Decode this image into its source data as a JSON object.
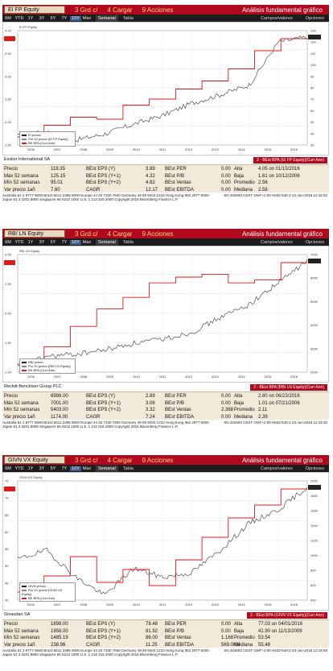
{
  "toolbar_labels": {
    "grd": "3 Grd c/",
    "cargar": "4 Cargar",
    "acciones": "9 Acciones",
    "title": "Análisis fundamental gráfico",
    "ranges": [
      "6M",
      "YTD",
      "1Y",
      "3Y",
      "5Y",
      "7Y",
      "10Y",
      "Max"
    ],
    "active_range": "10Y",
    "semanal": "Semanal",
    "tabla": "Tabla",
    "campos": "Campos/valores",
    "opciones": "Opciones"
  },
  "panels": [
    {
      "ticker": "EI FP Equity",
      "company": "Essilor International SA",
      "be_box": "2 - BEst BPA (EI FP Equity)(Curr Ann)",
      "stats": {
        "precio": {
          "label": "Precio",
          "value": "119.35"
        },
        "max52": {
          "label": "Máx 52 semana",
          "value": "125.15"
        },
        "min52": {
          "label": "Mín 52 semanas",
          "value": "95.01"
        },
        "var": {
          "label": "Var precio 1añ",
          "value": "7.60"
        },
        "eps_y": {
          "label": "BEst EPS (Y)",
          "value": "3.89"
        },
        "eps_y1": {
          "label": "BEst EPS (Y+1)",
          "value": "4.32"
        },
        "eps_y2": {
          "label": "BEst EPS (Y+2)",
          "value": "4.82"
        },
        "cagr": {
          "label": "CAGR",
          "value": "12.17"
        },
        "per": {
          "label": "BEst PER",
          "value": "0.00"
        },
        "pb": {
          "label": "BEst P/B",
          "value": "0.00"
        },
        "ventas": {
          "label": "BEst Ventas",
          "value": "0.00"
        },
        "ebitda": {
          "label": "BEst EBITDA",
          "value": "0.00"
        },
        "alta": {
          "label": "Alta",
          "value": "4.05 on 01/15/2016"
        },
        "baja": {
          "label": "Baja",
          "value": "1.61 on 10/12/2006"
        },
        "promedio": {
          "label": "Promedio",
          "value": "2.56"
        },
        "mediana": {
          "label": "Mediana",
          "value": "2.58"
        }
      },
      "footer_left": [
        "Australia 61 2 9777 8600  Brazil 5511 2395 9000  Europe 44 20 7330 7500  Germany 49 69 9204 1210  Hong Kong 852 2977 6000",
        "Japan 81 3 3201 8900          Singapore 65 6212 1000          U.S. 1 212 318 2000          Copyright 2016 Bloomberg Finance L.P."
      ],
      "footer_right": "SN 263693 CEST  GMT+2:00 H632-540-2  23-Jun-2016 12:15:52",
      "legend": [
        "EI precio",
        "Por 10 precio (EI FP Equity)",
        "BE BPA (Curr Ann)"
      ],
      "right_axis": [
        "130",
        "120",
        "110",
        "100",
        "90",
        "80",
        "70",
        "60",
        "50",
        "40",
        "30"
      ],
      "left_axis": [
        "4.00",
        "3.50",
        "3.00",
        "2.50",
        "2.00",
        "1.50"
      ],
      "chart_data": {
        "type": "line",
        "x": [
          "2006",
          "2007",
          "2008",
          "2009",
          "2010",
          "2011",
          "2012",
          "2013",
          "2014",
          "2015",
          "2016"
        ],
        "series": [
          {
            "name": "EI precio",
            "values": [
              38,
              42,
              35,
              40,
              48,
              55,
              65,
              72,
              80,
              115,
              119
            ]
          },
          {
            "name": "BE BPA (Curr Ann)",
            "values": [
              1.61,
              1.9,
              2.1,
              2.05,
              2.4,
              2.55,
              2.8,
              3.0,
              3.3,
              3.75,
              4.05
            ]
          }
        ]
      }
    },
    {
      "ticker": "RB/ LN Equity",
      "company": "Reckitt Benckiser Group PLC",
      "be_box": "2 - BEst BPA (RB/ LN Equity)(Curr Ann)",
      "stats": {
        "precio": {
          "label": "Precio",
          "value": "6998.00"
        },
        "max52": {
          "label": "Máx 52 semana",
          "value": "7001.00"
        },
        "min52": {
          "label": "Mín 52 semanas",
          "value": "5403.00"
        },
        "var": {
          "label": "Var precio 1añ",
          "value": "1174.00"
        },
        "eps_y": {
          "label": "BEst EPS (Y)",
          "value": "2.89"
        },
        "eps_y1": {
          "label": "BEst EPS (Y+1)",
          "value": "3.06"
        },
        "eps_y2": {
          "label": "BEst EPS (Y+2)",
          "value": "3.32"
        },
        "cagr": {
          "label": "CAGR",
          "value": "7.24"
        },
        "per": {
          "label": "BEst PER",
          "value": "0.00"
        },
        "pb": {
          "label": "BEst P/B",
          "value": "0.00"
        },
        "ventas": {
          "label": "BEst Ventas",
          "value": "2.368"
        },
        "ebitda": {
          "label": "BEst EBITDA",
          "value": "0.00"
        },
        "alta": {
          "label": "Alta",
          "value": "2.80 on 06/23/2016"
        },
        "baja": {
          "label": "Baja",
          "value": "1.01 on 07/21/2006"
        },
        "promedio": {
          "label": "Promedio",
          "value": "2.11"
        },
        "mediana": {
          "label": "Mediana",
          "value": "2.39"
        }
      },
      "footer_left": [
        "Australia 61 2 9777 8600  Brazil 5511 2395 9000  Europe 44 20 7330 7500  Germany 49 69 9204 1210  Hong Kong 852 2977 6000",
        "Japan 81 3 3201 8900          Singapore 65 6212 1000          U.S. 1 212 318 2000          Copyright 2016 Bloomberg Finance L.P."
      ],
      "footer_right": "SN 263693 CEST  GMT+2:00 H632-540-2  23-Jun-2016 12:16:30",
      "legend": [
        "RB/ precio",
        "Por 10 precio (RB/ LN Equity)",
        "BE BPA (Curr Ann)"
      ],
      "right_axis": [
        "7000",
        "6000",
        "5000",
        "4000",
        "3000",
        "2000"
      ],
      "left_axis": [
        "3.00",
        "2.50",
        "2.00",
        "1.50",
        "1.00"
      ],
      "chart_data": {
        "type": "line",
        "x": [
          "2006",
          "2007",
          "2008",
          "2009",
          "2010",
          "2011",
          "2012",
          "2013",
          "2014",
          "2015",
          "2016"
        ],
        "series": [
          {
            "name": "RB/ precio",
            "values": [
              2100,
              2600,
              2700,
              2900,
              3200,
              3400,
              3700,
              4400,
              5000,
              6000,
              6998
            ]
          },
          {
            "name": "BE BPA (Curr Ann)",
            "values": [
              1.05,
              1.35,
              1.7,
              2.0,
              2.2,
              2.45,
              2.55,
              2.6,
              2.45,
              2.5,
              2.8
            ]
          }
        ]
      }
    },
    {
      "ticker": "GIVN VX Equity",
      "company": "Givaudan SA",
      "be_box": "2 - BEst BPA (GIVN VX Equity)(Curr Ann)",
      "stats": {
        "precio": {
          "label": "Precio",
          "value": "1898.00"
        },
        "max52": {
          "label": "Máx 52 semana",
          "value": "1958.00"
        },
        "min52": {
          "label": "Mín 52 semanas",
          "value": "1485.19"
        },
        "var": {
          "label": "Var precio 1añ",
          "value": "238.96"
        },
        "eps_y": {
          "label": "BEst EPS (Y)",
          "value": "78.48"
        },
        "eps_y1": {
          "label": "BEst EPS (Y+1)",
          "value": "81.92"
        },
        "eps_y2": {
          "label": "BEst EPS (Y+2)",
          "value": "86.00"
        },
        "cagr": {
          "label": "CAGR",
          "value": "11.25"
        },
        "per": {
          "label": "BEst PER",
          "value": "0.00"
        },
        "pb": {
          "label": "BEst P/B",
          "value": "0.00"
        },
        "ventas": {
          "label": "BEst Ventas",
          "value": "1.168"
        },
        "ebitda": {
          "label": "BEst EBITDA",
          "value": "569.00M"
        },
        "alta": {
          "label": "Alta",
          "value": "77.03 on 04/01/2016"
        },
        "baja": {
          "label": "Baja",
          "value": "41.90 on 11/13/2009"
        },
        "promedio": {
          "label": "Promedio",
          "value": "53.54"
        },
        "mediana": {
          "label": "Mediana",
          "value": "55.48"
        }
      },
      "footer_left": [
        "Australia 61 2 9777 8600  Brazil 5511 2395 9000  Europe 44 20 7330 7500  Germany 49 69 9204 1210  Hong Kong 852 2977 6000",
        "Japan 81 3 3201 8900          Singapore 65 6212 1000          U.S. 1 212 318 2000          Copyright 2016 Bloomberg Finance L.P."
      ],
      "footer_right": "SN 263693 CEST  GMT+2:00 H632-540-2  23-Jun-2016 12:16:58",
      "legend": [
        "GIVN precio",
        "Por 10 precio (GIVN VX Equity)",
        "BE BPA (Curr Ann)"
      ],
      "right_axis": [
        "2000",
        "1800",
        "1600",
        "1400",
        "1200",
        "1000",
        "800",
        "600",
        "400"
      ],
      "left_axis": [
        "75",
        "70",
        "65",
        "60",
        "55",
        "50",
        "45",
        "40"
      ],
      "chart_data": {
        "type": "line",
        "x": [
          "2006",
          "2007",
          "2008",
          "2009",
          "2010",
          "2011",
          "2012",
          "2013",
          "2014",
          "2015",
          "2016"
        ],
        "series": [
          {
            "name": "GIVN precio",
            "values": [
              1100,
              1200,
              900,
              700,
              1000,
              900,
              950,
              1200,
              1500,
              1650,
              1898
            ]
          },
          {
            "name": "BE BPA (Curr Ann)",
            "values": [
              45,
              50,
              56,
              48,
              52,
              47,
              55,
              62,
              68,
              72,
              77
            ]
          }
        ]
      }
    }
  ]
}
